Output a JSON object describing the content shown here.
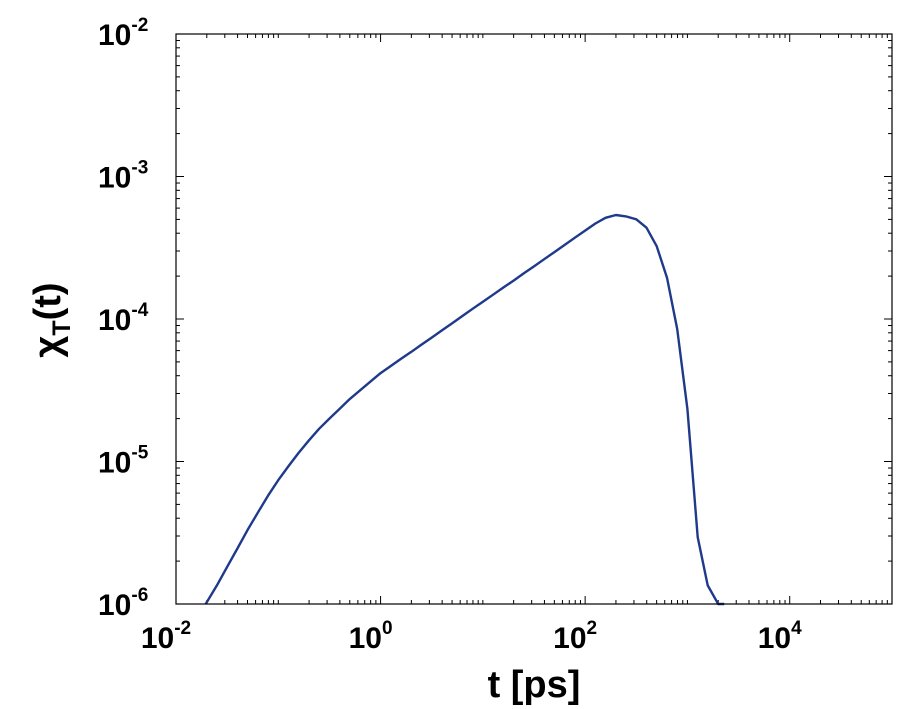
{
  "chart_data": {
    "type": "line",
    "title": "",
    "xlabel": "t [ps]",
    "ylabel": {
      "base": "χ",
      "subscript": "T",
      "suffix": "(t)"
    },
    "x_scale": "log",
    "y_scale": "log",
    "xlim": [
      0.01,
      100000
    ],
    "ylim": [
      1e-06,
      0.01
    ],
    "grid": false,
    "x_ticks": [
      {
        "base": "10",
        "exp": "-2",
        "value": 0.01
      },
      {
        "base": "10",
        "exp": "0",
        "value": 1
      },
      {
        "base": "10",
        "exp": "2",
        "value": 100
      },
      {
        "base": "10",
        "exp": "4",
        "value": 10000
      }
    ],
    "y_ticks": [
      {
        "base": "10",
        "exp": "-6",
        "value": 1e-06
      },
      {
        "base": "10",
        "exp": "-5",
        "value": 1e-05
      },
      {
        "base": "10",
        "exp": "-4",
        "value": 0.0001
      },
      {
        "base": "10",
        "exp": "-3",
        "value": 0.001
      },
      {
        "base": "10",
        "exp": "-2",
        "value": 0.01
      }
    ],
    "series": [
      {
        "color": "#1f3a8a",
        "x": [
          0.0195,
          0.0251,
          0.0316,
          0.0398,
          0.0501,
          0.0631,
          0.0794,
          0.1,
          0.126,
          0.158,
          0.2,
          0.251,
          0.316,
          0.398,
          0.501,
          0.631,
          0.794,
          1,
          1.26,
          1.58,
          2,
          2.51,
          3.16,
          3.98,
          5.01,
          6.31,
          7.94,
          10,
          12.6,
          15.8,
          20,
          25.1,
          31.6,
          39.8,
          50.1,
          63.1,
          79.4,
          100,
          126,
          158,
          200,
          251,
          316,
          398,
          501,
          631,
          794,
          1000,
          1260,
          1580,
          2000,
          2290
        ],
        "y": [
          1e-06,
          1.35e-06,
          1.82e-06,
          2.45e-06,
          3.31e-06,
          4.37e-06,
          5.75e-06,
          7.41e-06,
          9.3e-06,
          1.15e-05,
          1.41e-05,
          1.7e-05,
          2e-05,
          2.34e-05,
          2.75e-05,
          3.16e-05,
          3.63e-05,
          4.17e-05,
          4.68e-05,
          5.25e-05,
          5.89e-05,
          6.61e-05,
          7.41e-05,
          8.32e-05,
          9.33e-05,
          0.000105,
          0.000118,
          0.000132,
          0.000148,
          0.000166,
          0.000186,
          0.000209,
          0.000234,
          0.000263,
          0.000295,
          0.000331,
          0.000372,
          0.000417,
          0.000468,
          0.000513,
          0.000537,
          0.000525,
          0.000501,
          0.000437,
          0.000324,
          0.000195,
          8.51e-05,
          2.34e-05,
          2.95e-06,
          1.35e-06,
          1e-06,
          1e-06
        ]
      }
    ]
  }
}
